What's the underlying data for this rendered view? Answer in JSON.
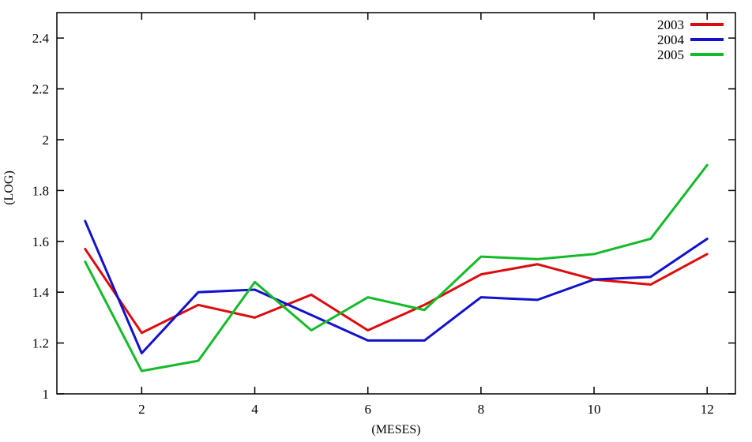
{
  "chart_data": {
    "type": "line",
    "title": "",
    "xlabel": "(MESES)",
    "ylabel": "(LOG)",
    "x": [
      1,
      2,
      3,
      4,
      5,
      6,
      7,
      8,
      9,
      10,
      11,
      12
    ],
    "series": [
      {
        "name": "2003",
        "color": "#dd0c0c",
        "values": [
          1.57,
          1.24,
          1.35,
          1.3,
          1.39,
          1.25,
          1.35,
          1.47,
          1.51,
          1.45,
          1.43,
          1.55
        ]
      },
      {
        "name": "2004",
        "color": "#1212cc",
        "values": [
          1.68,
          1.16,
          1.4,
          1.41,
          1.31,
          1.21,
          1.21,
          1.38,
          1.37,
          1.45,
          1.46,
          1.61
        ]
      },
      {
        "name": "2005",
        "color": "#14bb28",
        "values": [
          1.52,
          1.09,
          1.13,
          1.44,
          1.25,
          1.38,
          1.33,
          1.54,
          1.53,
          1.55,
          1.61,
          1.9
        ]
      }
    ],
    "xlim": [
      0.5,
      12.5
    ],
    "ylim": [
      1,
      2.5
    ],
    "xticks": [
      {
        "v": 2,
        "label": "2"
      },
      {
        "v": 4,
        "label": "4"
      },
      {
        "v": 6,
        "label": "6"
      },
      {
        "v": 8,
        "label": "8"
      },
      {
        "v": 10,
        "label": "10"
      },
      {
        "v": 12,
        "label": "12"
      }
    ],
    "yticks": [
      {
        "v": 1.0,
        "label": "1"
      },
      {
        "v": 1.2,
        "label": "1.2"
      },
      {
        "v": 1.4,
        "label": "1.4"
      },
      {
        "v": 1.6,
        "label": "1.6"
      },
      {
        "v": 1.8,
        "label": "1.8"
      },
      {
        "v": 2.0,
        "label": "2"
      },
      {
        "v": 2.2,
        "label": "2.2"
      },
      {
        "v": 2.4,
        "label": "2.4"
      }
    ],
    "grid": false,
    "legend": {
      "position": "top-right",
      "entries": [
        "2003",
        "2004",
        "2005"
      ]
    },
    "axis_color": "#000000",
    "background_color": "#ffffff"
  }
}
